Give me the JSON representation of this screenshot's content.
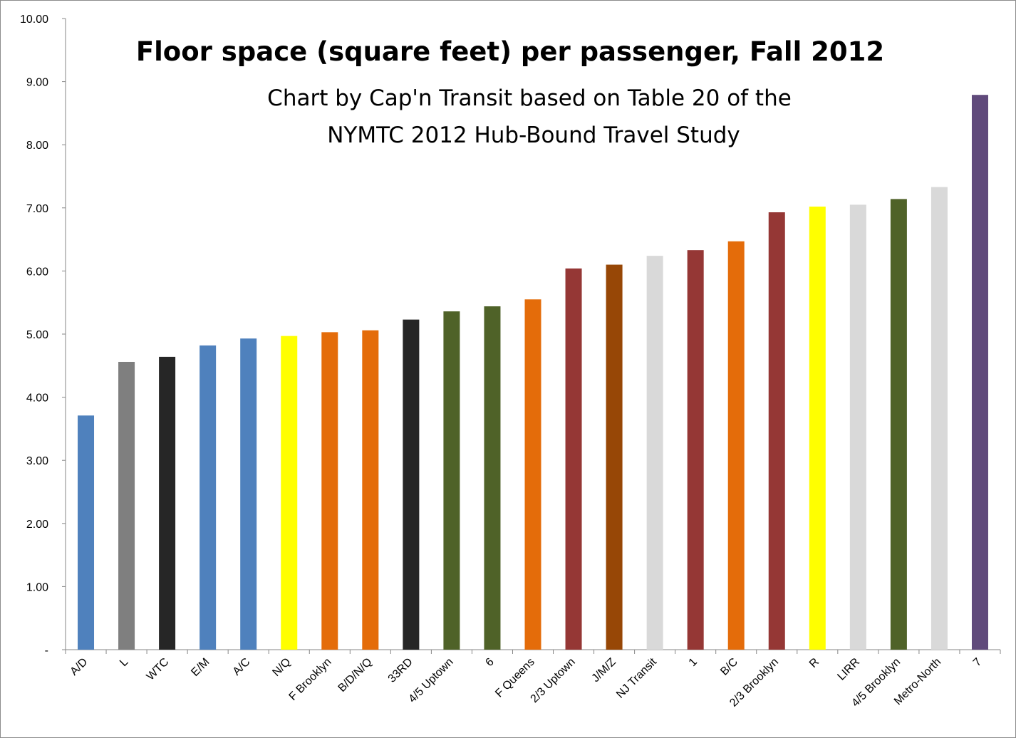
{
  "chart_data": {
    "type": "bar",
    "title": "Floor space (square feet) per passenger, Fall 2012",
    "subtitle_lines": [
      "Chart by Cap'n Transit based on Table 20 of the",
      "NYMTC 2012 Hub-Bound Travel Study"
    ],
    "xlabel": "",
    "ylabel": "",
    "ylim": [
      0,
      10
    ],
    "yticks": [
      {
        "value": 0,
        "label": "-"
      },
      {
        "value": 1,
        "label": "1.00"
      },
      {
        "value": 2,
        "label": "2.00"
      },
      {
        "value": 3,
        "label": "3.00"
      },
      {
        "value": 4,
        "label": "4.00"
      },
      {
        "value": 5,
        "label": "5.00"
      },
      {
        "value": 6,
        "label": "6.00"
      },
      {
        "value": 7,
        "label": "7.00"
      },
      {
        "value": 8,
        "label": "8.00"
      },
      {
        "value": 9,
        "label": "9.00"
      },
      {
        "value": 10,
        "label": "10.00"
      }
    ],
    "grid": false,
    "legend": "none",
    "categories": [
      "A/D",
      "L",
      "WTC",
      "E/M",
      "A/C",
      "N/Q",
      "F Brooklyn",
      "B/D/N/Q",
      "33RD",
      "4/5 Uptown",
      "6",
      "F Queens",
      "2/3 Uptown",
      "J/M/Z",
      "NJ Transit",
      "1",
      "B/C",
      "2/3 Brooklyn",
      "R",
      "LIRR",
      "4/5 Brooklyn",
      "Metro-North",
      "7"
    ],
    "values": [
      3.71,
      4.56,
      4.64,
      4.82,
      4.93,
      4.97,
      5.03,
      5.06,
      5.23,
      5.36,
      5.44,
      5.55,
      6.04,
      6.1,
      6.24,
      6.33,
      6.47,
      6.93,
      7.02,
      7.05,
      7.14,
      7.33,
      8.79
    ],
    "colors": [
      "#4f81bd",
      "#7f7f7f",
      "#262626",
      "#4f81bd",
      "#4f81bd",
      "#ffff00",
      "#e46c0a",
      "#e46c0a",
      "#262626",
      "#4f6228",
      "#4f6228",
      "#e46c0a",
      "#953735",
      "#974706",
      "#d9d9d9",
      "#953735",
      "#e46c0a",
      "#953735",
      "#ffff00",
      "#d9d9d9",
      "#4f6228",
      "#d9d9d9",
      "#604a7b"
    ]
  }
}
